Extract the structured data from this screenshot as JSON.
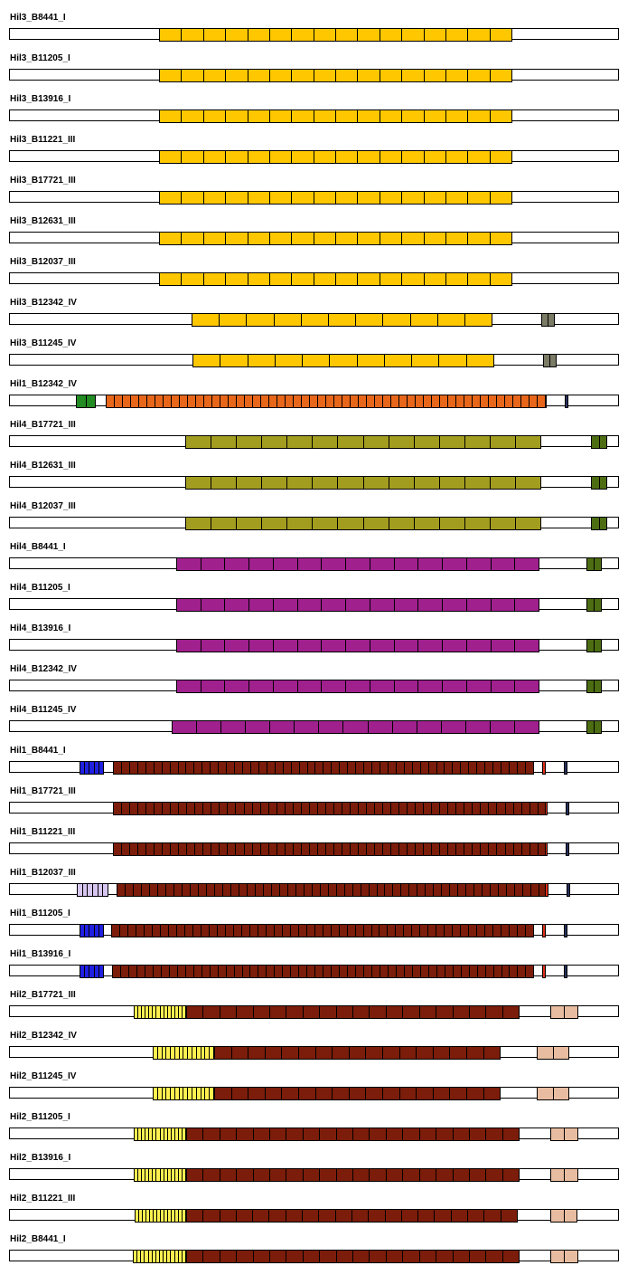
{
  "colors": {
    "hil3_repeat": "#fec700",
    "hil3_tail": "#7b7b66",
    "hil1_b12342_head": "#228b22",
    "hil1_b12342_repeat": "#e8661a",
    "hil4_olive": "#a39d1f",
    "hil4_purple": "#a0208e",
    "hil4_tail": "#4d6d12",
    "hil1_head_blue": "#2020e0",
    "hil1_head_lilac": "#d6c6ef",
    "hil1_repeat": "#7b1d0a",
    "hil1_red_mark": "#e03018",
    "hil1_navy_mark": "#24305e",
    "hil2_head": "#fff050",
    "hil2_repeat": "#7b1d0a",
    "hil2_tail": "#e8bca0"
  },
  "tracks": [
    {
      "label": "Hil3_B8441_I"
    },
    {
      "label": "Hil3_B11205_I"
    },
    {
      "label": "Hil3_B13916_I"
    },
    {
      "label": "Hil3_B11221_III"
    },
    {
      "label": "Hil3_B17721_III"
    },
    {
      "label": "Hil3_B12631_III"
    },
    {
      "label": "Hil3_B12037_III"
    },
    {
      "label": "Hil3_B12342_IV"
    },
    {
      "label": "Hil3_B11245_IV"
    },
    {
      "label": "Hil1_B12342_IV"
    },
    {
      "label": "Hil4_B17721_III"
    },
    {
      "label": "Hil4_B12631_III"
    },
    {
      "label": "Hil4_B12037_III"
    },
    {
      "label": "Hil4_B8441_I"
    },
    {
      "label": "Hil4_B11205_I"
    },
    {
      "label": "Hil4_B13916_I"
    },
    {
      "label": "Hil4_B12342_IV"
    },
    {
      "label": "Hil4_B11245_IV"
    },
    {
      "label": "Hil1_B8441_I"
    },
    {
      "label": "Hil1_B17721_III"
    },
    {
      "label": "Hil1_B11221_III"
    },
    {
      "label": "Hil1_B12037_III"
    },
    {
      "label": "Hil1_B11205_I"
    },
    {
      "label": "Hil1_B13916_I"
    },
    {
      "label": "Hil2_B17721_III"
    },
    {
      "label": "Hil2_B12342_IV"
    },
    {
      "label": "Hil2_B11245_IV"
    },
    {
      "label": "Hil2_B11205_I"
    },
    {
      "label": "Hil2_B13916_I"
    },
    {
      "label": "Hil2_B11221_III"
    },
    {
      "label": "Hil2_B8441_I"
    }
  ]
}
